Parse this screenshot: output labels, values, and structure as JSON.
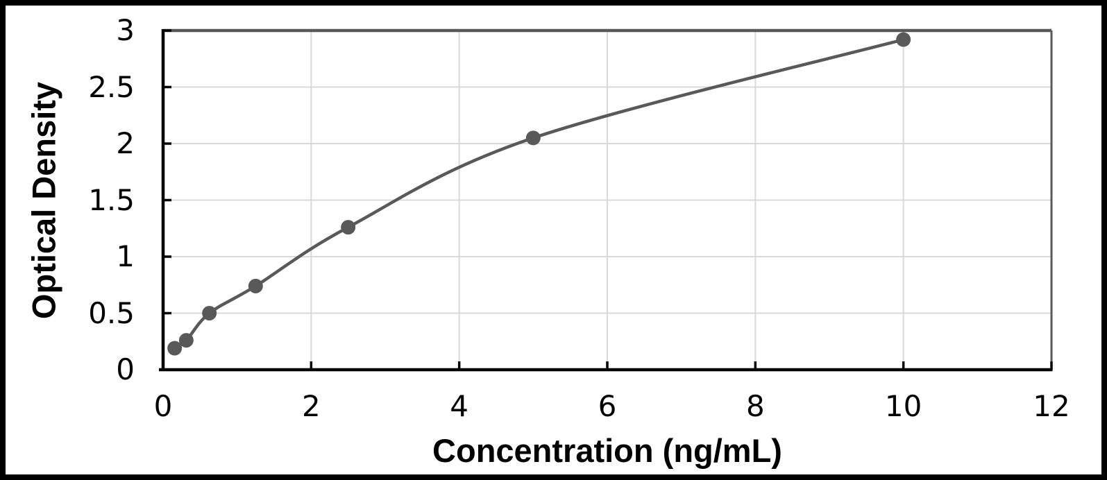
{
  "figure": {
    "background": "#ffffff",
    "frame_color": "#000000"
  },
  "chart_data": {
    "type": "line",
    "title": "",
    "xlabel": "Concentration (ng/mL)",
    "ylabel": "Optical Density",
    "xlim": [
      0,
      12
    ],
    "ylim": [
      0,
      3
    ],
    "x_ticks": [
      0,
      2,
      4,
      6,
      8,
      10,
      12
    ],
    "y_ticks": [
      0,
      0.5,
      1,
      1.5,
      2,
      2.5,
      3
    ],
    "grid": true,
    "legend": false,
    "series": [
      {
        "name": "standard-curve",
        "marker": "circle",
        "color": "#595959",
        "points": [
          {
            "x": 0.156,
            "y": 0.19
          },
          {
            "x": 0.313,
            "y": 0.26
          },
          {
            "x": 0.625,
            "y": 0.5
          },
          {
            "x": 1.25,
            "y": 0.74
          },
          {
            "x": 2.5,
            "y": 1.26
          },
          {
            "x": 5,
            "y": 2.05
          },
          {
            "x": 10,
            "y": 2.92
          }
        ]
      }
    ],
    "colors": {
      "gridline": "#d9d9d9",
      "axis": "#000000",
      "plot_border": "#595959",
      "tick_label": "#000000"
    }
  }
}
